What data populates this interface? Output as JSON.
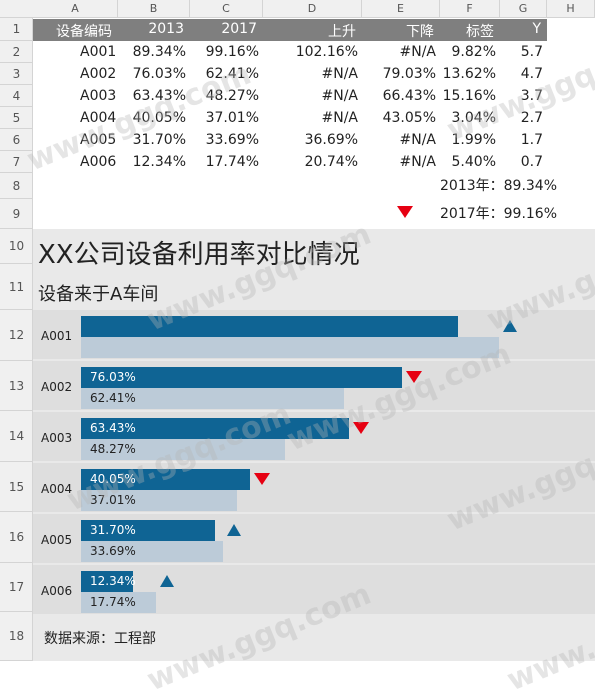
{
  "columns": [
    "A",
    "B",
    "C",
    "D",
    "E",
    "F",
    "G",
    "H"
  ],
  "rows": [
    "1",
    "2",
    "3",
    "4",
    "5",
    "6",
    "7",
    "8",
    "9",
    "10",
    "11",
    "12",
    "13",
    "14",
    "15",
    "16",
    "17",
    "18"
  ],
  "table": {
    "headers": [
      "设备编码",
      "2013",
      "2017",
      "上升",
      "下降",
      "标签",
      "Y"
    ],
    "rows": [
      [
        "A001",
        "89.34%",
        "99.16%",
        "102.16%",
        "#N/A",
        "9.82%",
        "5.7"
      ],
      [
        "A002",
        "76.03%",
        "62.41%",
        "#N/A",
        "79.03%",
        "13.62%",
        "4.7"
      ],
      [
        "A003",
        "63.43%",
        "48.27%",
        "#N/A",
        "66.43%",
        "15.16%",
        "3.7"
      ],
      [
        "A004",
        "40.05%",
        "37.01%",
        "#N/A",
        "43.05%",
        "3.04%",
        "2.7"
      ],
      [
        "A005",
        "31.70%",
        "33.69%",
        "36.69%",
        "#N/A",
        "1.99%",
        "1.7"
      ],
      [
        "A006",
        "12.34%",
        "17.74%",
        "20.74%",
        "#N/A",
        "5.40%",
        "0.7"
      ]
    ]
  },
  "legend": {
    "row8": "2013年：89.34%",
    "row9": "2017年：99.16%"
  },
  "chart_data": {
    "type": "bar",
    "title": "XX公司设备利用率对比情况",
    "subtitle": "设备来于A车间",
    "categories": [
      "A001",
      "A002",
      "A003",
      "A004",
      "A005",
      "A006"
    ],
    "series": [
      {
        "name": "2013",
        "values": [
          89.34,
          76.03,
          63.43,
          40.05,
          31.7,
          12.34
        ],
        "color": "#0f6494"
      },
      {
        "name": "2017",
        "values": [
          99.16,
          62.41,
          48.27,
          37.01,
          33.69,
          17.74
        ],
        "color": "#bccbd8"
      }
    ],
    "labels_2013": [
      "",
      "76.03%",
      "63.43%",
      "40.05%",
      "31.70%",
      "12.34%"
    ],
    "labels_2017": [
      "",
      "62.41%",
      "48.27%",
      "37.01%",
      "33.69%",
      "17.74%"
    ],
    "trend": [
      "up",
      "down",
      "down",
      "down",
      "up",
      "up"
    ],
    "xlim": [
      0,
      100
    ]
  },
  "source": "数据来源：工程部",
  "watermark": "www.ggq.com"
}
